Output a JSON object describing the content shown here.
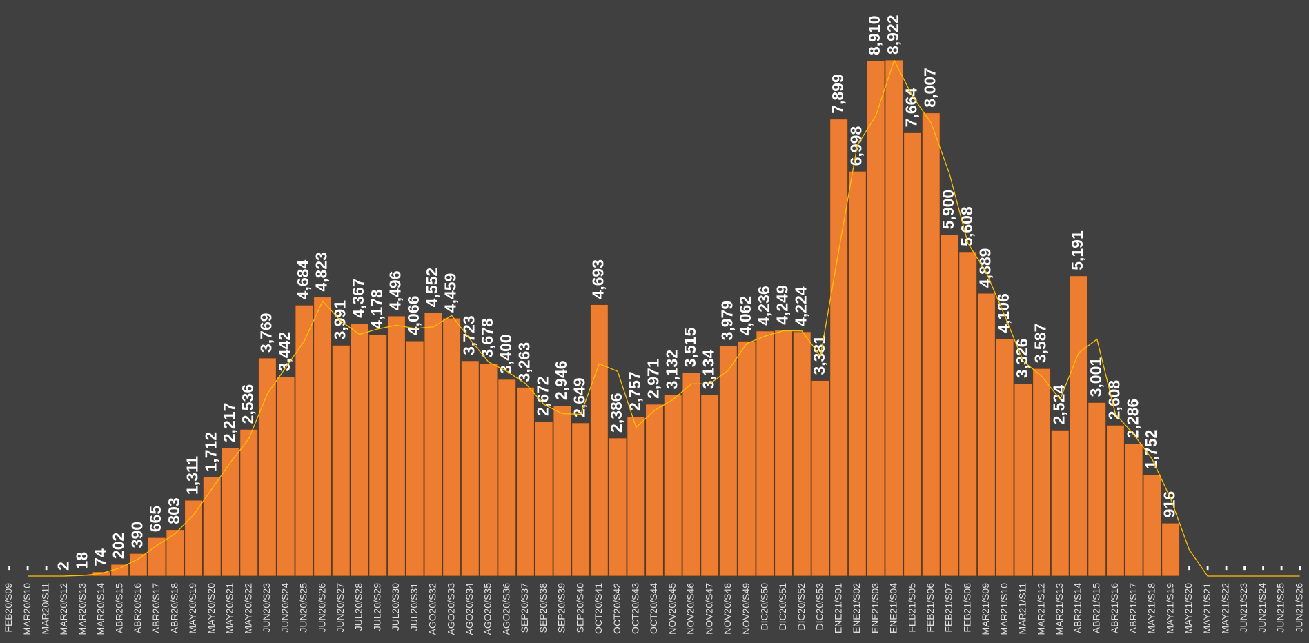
{
  "chart_data": {
    "type": "bar",
    "categories": [
      "FEB20/S09",
      "MAR20/S10",
      "MAR20/S11",
      "MAR20/S12",
      "MAR20/S13",
      "MAR20/S14",
      "ABR20/S15",
      "ABR20/S16",
      "ABR20/S17",
      "ABR20/S18",
      "MAY20/S19",
      "MAY20/S20",
      "MAY20/S21",
      "MAY20/S22",
      "JUN20/S23",
      "JUN20/S24",
      "JUN20/S25",
      "JUN20/S26",
      "JUN20/S27",
      "JUL20/S28",
      "JUL20/S29",
      "JUL20/S30",
      "JUL20/S31",
      "AGO20/S32",
      "AGO20/S33",
      "AGO20/S34",
      "AGO20/S35",
      "AGO20/S36",
      "SEP20/S37",
      "SEP20/S38",
      "SEP20/S39",
      "SEP20/S40",
      "OCT20/S41",
      "OCT20/S42",
      "OCT20/S43",
      "OCT20/S44",
      "NOV20/S45",
      "NOV20/S46",
      "NOV20/S47",
      "NOV20/S48",
      "NOV20/S49",
      "DIC20/S50",
      "DIC20/S51",
      "DIC20/S52",
      "DIC20/S53",
      "ENE21/S01",
      "ENE21/S02",
      "ENE21/S03",
      "ENE21/S04",
      "FEB21/S05",
      "FEB21/S06",
      "FEB21/S07",
      "FEB21/S08",
      "MAR21/S09",
      "MAR21/S10",
      "MAR21/S11",
      "MAR21/S12",
      "MAR21/S13",
      "ABR21/S14",
      "ABR21/S15",
      "ABR21/S16",
      "ABR21/S17",
      "MAY21/S18",
      "MAY21/S19",
      "MAY21/S20",
      "MAY21/S21",
      "MAY21/S22",
      "JUN21/S23",
      "JUN21/S24",
      "JUN21/S25",
      "JUN21/S26"
    ],
    "series": [
      {
        "type": "bar",
        "color": "#ed7d31",
        "values": [
          0,
          0,
          0,
          2,
          18,
          74,
          202,
          390,
          665,
          803,
          1311,
          1712,
          2217,
          2536,
          3769,
          3442,
          4684,
          4823,
          3991,
          4367,
          4178,
          4496,
          4066,
          4552,
          4459,
          3723,
          3678,
          3400,
          3263,
          2672,
          2946,
          2649,
          4693,
          2386,
          2757,
          2971,
          3132,
          3515,
          3134,
          3979,
          4062,
          4236,
          4249,
          4224,
          3381,
          7899,
          6998,
          8910,
          8922,
          7664,
          8007,
          5900,
          5608,
          4889,
          4106,
          3326,
          3587,
          2524,
          5191,
          3001,
          2608,
          2286,
          1752,
          916,
          0,
          0,
          0,
          0,
          0,
          0,
          0
        ],
        "value_labels": [
          "-",
          "-",
          "-",
          "2",
          "18",
          "74",
          "202",
          "390",
          "665",
          "803",
          "1,311",
          "1,712",
          "2,217",
          "2,536",
          "3,769",
          "3,442",
          "4,684",
          "4,823",
          "3,991",
          "4,367",
          "4,178",
          "4,496",
          "4,066",
          "4,552",
          "4,459",
          "3,723",
          "3,678",
          "3,400",
          "3,263",
          "2,672",
          "2,946",
          "2,649",
          "4,693",
          "2,386",
          "2,757",
          "2,971",
          "3,132",
          "3,515",
          "3,134",
          "3,979",
          "4,062",
          "4,236",
          "4,249",
          "4,224",
          "3,381",
          "7,899",
          "6,998",
          "8,910",
          "8,922",
          "7,664",
          "8,007",
          "5,900",
          "5,608",
          "4,889",
          "4,106",
          "3,326",
          "3,587",
          "2,524",
          "5,191",
          "3,001",
          "2,608",
          "2,286",
          "1,752",
          "916",
          "-",
          "-",
          "-",
          "-",
          "-",
          "-",
          "-"
        ]
      },
      {
        "type": "line",
        "color": "#ffc000",
        "values": [
          null,
          0,
          0,
          1,
          10,
          46,
          138,
          296,
          527.5,
          734,
          1057,
          1511.5,
          1964.5,
          2376.5,
          3152.5,
          3605.5,
          4063,
          4753.5,
          4407,
          4179,
          4272.5,
          4337,
          4281,
          4309,
          4505.5,
          4091,
          3700.5,
          3539,
          3331.5,
          2967.5,
          2809,
          2797.5,
          3671,
          3539.5,
          2571.5,
          2864,
          3051.5,
          3323.5,
          3324.5,
          3556.5,
          4020.5,
          4149,
          4242.5,
          4236.5,
          3802.5,
          5640,
          7448.5,
          7954,
          8916,
          8293,
          7835.5,
          6953.5,
          5754,
          5248.5,
          4497.5,
          3716,
          3456.5,
          3055.5,
          3857.5,
          4096,
          2804.5,
          2447,
          2019,
          1334,
          458,
          0,
          0,
          0,
          0,
          0,
          0
        ]
      }
    ]
  }
}
